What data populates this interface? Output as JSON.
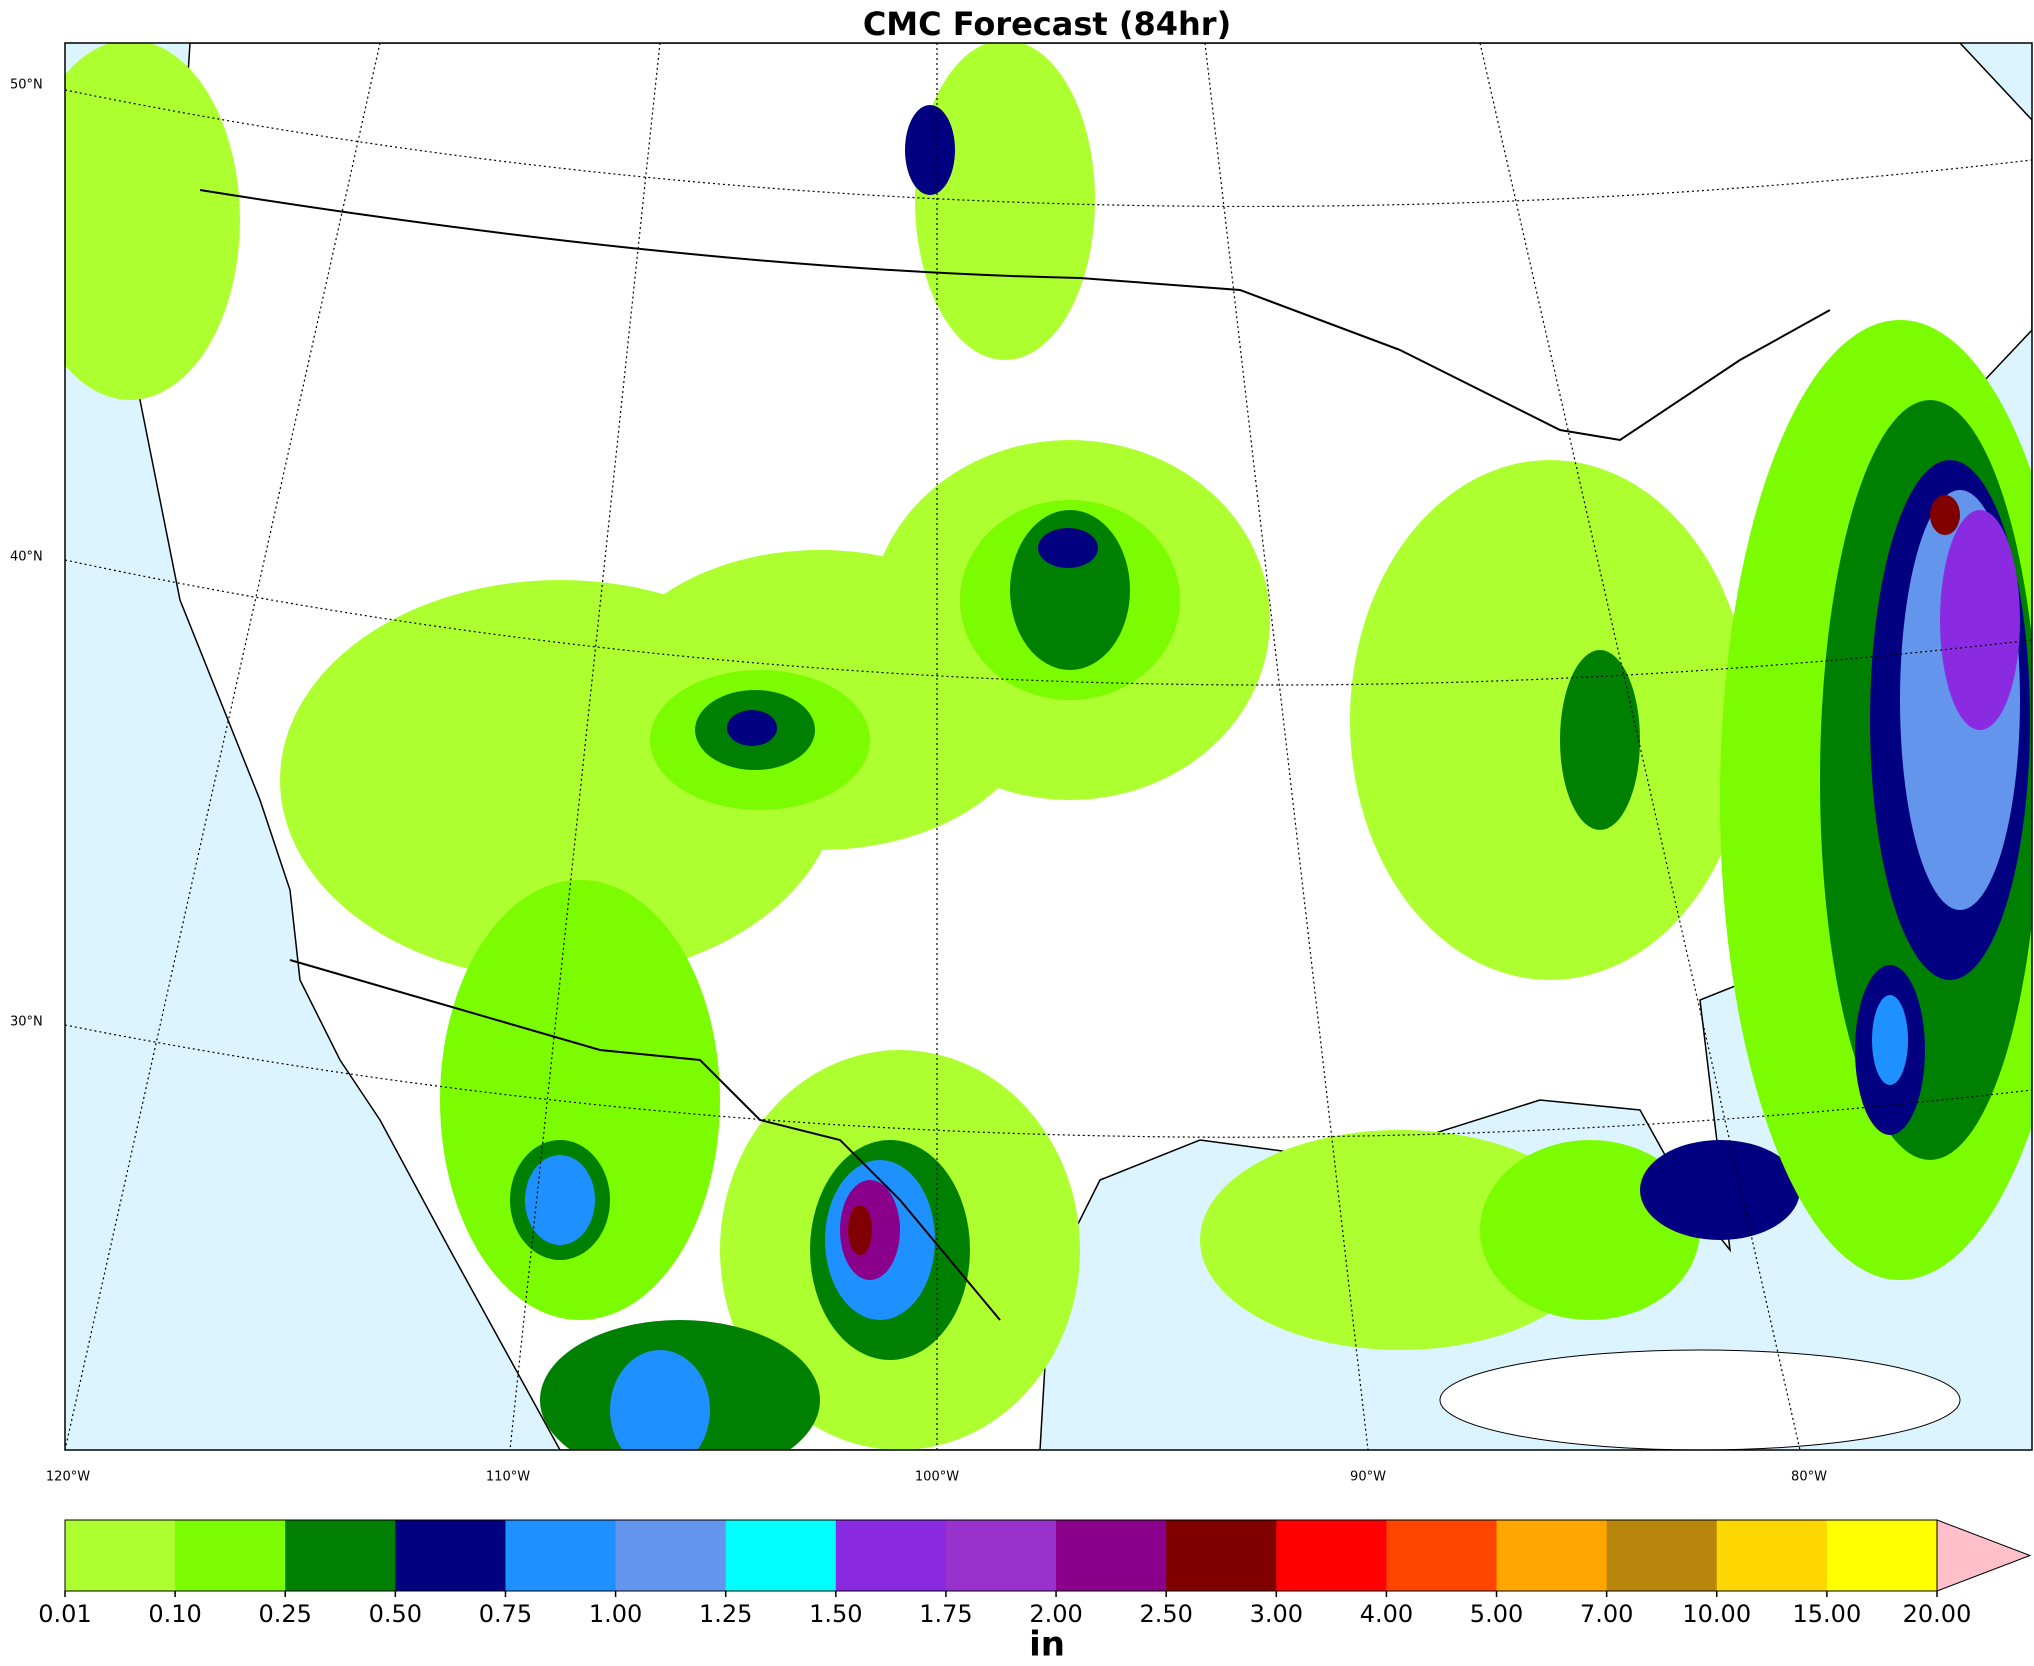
{
  "title": "CMC Forecast (84hr)",
  "lat_labels": [
    "50°N",
    "40°N",
    "30°N"
  ],
  "lon_labels": [
    "120°W",
    "110°W",
    "100°W",
    "90°W",
    "80°W"
  ],
  "colorbar": {
    "ticks": [
      {
        "value": 0.01,
        "label": "0.01"
      },
      {
        "value": 0.1,
        "label": "0.10"
      },
      {
        "value": 0.25,
        "label": "0.25"
      },
      {
        "value": 0.5,
        "label": "0.50"
      },
      {
        "value": 0.75,
        "label": "0.75"
      },
      {
        "value": 1,
        "label": "1.00"
      },
      {
        "value": 1.25,
        "label": "1.25"
      },
      {
        "value": 1.5,
        "label": "1.50"
      },
      {
        "value": 1.75,
        "label": "1.75"
      },
      {
        "value": 2,
        "label": "2.00"
      },
      {
        "value": 2.5,
        "label": "2.50"
      },
      {
        "value": 3,
        "label": "3.00"
      },
      {
        "value": 4,
        "label": "4.00"
      },
      {
        "value": 5,
        "label": "5.00"
      },
      {
        "value": 7,
        "label": "7.00"
      },
      {
        "value": 10,
        "label": "10.00"
      },
      {
        "value": 15,
        "label": "15.00"
      },
      {
        "value": 20,
        "label": "20.00"
      }
    ],
    "colors": [
      "#adff2f",
      "#7cfc00",
      "#008000",
      "#000080",
      "#1e90ff",
      "#6495ed",
      "#00ffff",
      "#8a2be2",
      "#9932cc",
      "#8b008b",
      "#800000",
      "#ff0000",
      "#ff4500",
      "#ffa500",
      "#b8860b",
      "#ffd700",
      "#ffff00"
    ],
    "extend_color": "#ffc0cb",
    "label": "in"
  }
}
